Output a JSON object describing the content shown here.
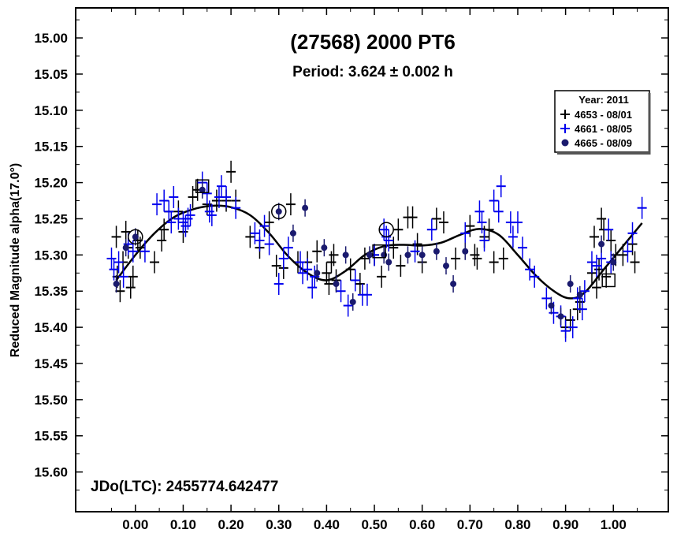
{
  "chart_data": {
    "type": "scatter",
    "title": "(27568) 2000 PT6",
    "subtitle": "Period: 3.624 ± 0.002 h",
    "ylabel": "Reduced Magnitude alpha(17.0°)",
    "xlabel": "",
    "epoch_label": "JDo(LTC): 2455774.642477",
    "xlim": [
      -0.125,
      1.115
    ],
    "ylim": [
      15.6549,
      14.9585
    ],
    "y_inverted": true,
    "x_ticks": [
      0.0,
      0.1,
      0.2,
      0.3,
      0.4,
      0.5,
      0.6,
      0.7,
      0.8,
      0.9,
      1.0
    ],
    "x_tick_labels": [
      "0.00",
      "0.10",
      "0.20",
      "0.30",
      "0.40",
      "0.50",
      "0.60",
      "0.70",
      "0.80",
      "0.90",
      "1.00"
    ],
    "y_ticks": [
      15.0,
      15.05,
      15.1,
      15.15,
      15.2,
      15.25,
      15.3,
      15.35,
      15.4,
      15.45,
      15.5,
      15.55,
      15.6
    ],
    "y_tick_labels": [
      "15.00",
      "15.05",
      "15.10",
      "15.15",
      "15.20",
      "15.25",
      "15.30",
      "15.35",
      "15.40",
      "15.45",
      "15.50",
      "15.55",
      "15.60"
    ],
    "legend": {
      "title": "Year: 2011",
      "placement": "top-right",
      "entries": [
        "4653 - 08/01",
        "4661 - 08/05",
        "4665 - 08/09"
      ]
    },
    "colors": {
      "black": "#000000",
      "blue": "#0000ee",
      "navy": "#1a1a6e"
    },
    "series": [
      {
        "name": "4653 - 08/01",
        "marker": "cross",
        "color": "#000000",
        "points": [
          [
            -0.04,
            15.275
          ],
          [
            -0.038,
            15.33
          ],
          [
            -0.032,
            15.35
          ],
          [
            -0.026,
            15.31
          ],
          [
            -0.02,
            15.268
          ],
          [
            -0.015,
            15.29
          ],
          [
            -0.01,
            15.345
          ],
          [
            -0.005,
            15.33
          ],
          [
            0.005,
            15.28
          ],
          [
            0.01,
            15.29
          ],
          [
            0.04,
            15.31
          ],
          [
            0.055,
            15.28
          ],
          [
            0.06,
            15.265
          ],
          [
            0.07,
            15.24
          ],
          [
            0.09,
            15.24
          ],
          [
            0.1,
            15.268
          ],
          [
            0.12,
            15.22
          ],
          [
            0.13,
            15.21
          ],
          [
            0.15,
            15.23
          ],
          [
            0.17,
            15.225
          ],
          [
            0.19,
            15.225
          ],
          [
            0.2,
            15.185
          ],
          [
            0.21,
            15.225
          ],
          [
            0.24,
            15.275
          ],
          [
            0.26,
            15.29
          ],
          [
            0.28,
            15.255
          ],
          [
            0.295,
            15.315
          ],
          [
            0.31,
            15.318
          ],
          [
            0.325,
            15.23
          ],
          [
            0.34,
            15.31
          ],
          [
            0.36,
            15.31
          ],
          [
            0.38,
            15.295
          ],
          [
            0.4,
            15.325
          ],
          [
            0.405,
            15.34
          ],
          [
            0.41,
            15.31
          ],
          [
            0.415,
            15.3
          ],
          [
            0.42,
            15.335
          ],
          [
            0.45,
            15.32
          ],
          [
            0.47,
            15.34
          ],
          [
            0.48,
            15.305
          ],
          [
            0.5,
            15.3
          ],
          [
            0.515,
            15.33
          ],
          [
            0.54,
            15.29
          ],
          [
            0.55,
            15.265
          ],
          [
            0.555,
            15.315
          ],
          [
            0.57,
            15.248
          ],
          [
            0.58,
            15.248
          ],
          [
            0.59,
            15.285
          ],
          [
            0.6,
            15.31
          ],
          [
            0.63,
            15.25
          ],
          [
            0.645,
            15.255
          ],
          [
            0.67,
            15.305
          ],
          [
            0.7,
            15.26
          ],
          [
            0.71,
            15.3
          ],
          [
            0.715,
            15.305
          ],
          [
            0.73,
            15.275
          ],
          [
            0.74,
            15.265
          ],
          [
            0.75,
            15.31
          ],
          [
            0.77,
            15.305
          ],
          [
            0.9,
            15.4
          ],
          [
            0.91,
            15.39
          ],
          [
            0.925,
            15.375
          ],
          [
            0.93,
            15.365
          ],
          [
            0.955,
            15.325
          ],
          [
            0.96,
            15.275
          ],
          [
            0.965,
            15.345
          ],
          [
            0.97,
            15.32
          ],
          [
            0.975,
            15.25
          ],
          [
            0.98,
            15.265
          ],
          [
            0.985,
            15.33
          ],
          [
            0.995,
            15.28
          ],
          [
            1.005,
            15.3
          ],
          [
            1.02,
            15.3
          ],
          [
            1.04,
            15.285
          ],
          [
            1.045,
            15.31
          ]
        ]
      },
      {
        "name": "4661 - 08/05",
        "marker": "cross",
        "color": "#0000ee",
        "points": [
          [
            -0.05,
            15.305
          ],
          [
            -0.045,
            15.32
          ],
          [
            -0.035,
            15.31
          ],
          [
            -0.025,
            15.33
          ],
          [
            -0.015,
            15.285
          ],
          [
            -0.005,
            15.295
          ],
          [
            0.02,
            15.295
          ],
          [
            0.045,
            15.23
          ],
          [
            0.06,
            15.225
          ],
          [
            0.07,
            15.24
          ],
          [
            0.075,
            15.255
          ],
          [
            0.08,
            15.22
          ],
          [
            0.09,
            15.25
          ],
          [
            0.1,
            15.255
          ],
          [
            0.105,
            15.26
          ],
          [
            0.11,
            15.25
          ],
          [
            0.115,
            15.245
          ],
          [
            0.14,
            15.2
          ],
          [
            0.15,
            15.215
          ],
          [
            0.155,
            15.24
          ],
          [
            0.16,
            15.245
          ],
          [
            0.175,
            15.22
          ],
          [
            0.18,
            15.205
          ],
          [
            0.19,
            15.22
          ],
          [
            0.21,
            15.235
          ],
          [
            0.25,
            15.27
          ],
          [
            0.26,
            15.28
          ],
          [
            0.27,
            15.26
          ],
          [
            0.28,
            15.285
          ],
          [
            0.3,
            15.34
          ],
          [
            0.31,
            15.305
          ],
          [
            0.32,
            15.29
          ],
          [
            0.345,
            15.31
          ],
          [
            0.35,
            15.325
          ],
          [
            0.36,
            15.32
          ],
          [
            0.37,
            15.345
          ],
          [
            0.375,
            15.33
          ],
          [
            0.43,
            15.35
          ],
          [
            0.445,
            15.37
          ],
          [
            0.46,
            15.335
          ],
          [
            0.475,
            15.355
          ],
          [
            0.485,
            15.355
          ],
          [
            0.5,
            15.3
          ],
          [
            0.52,
            15.265
          ],
          [
            0.525,
            15.275
          ],
          [
            0.53,
            15.28
          ],
          [
            0.585,
            15.295
          ],
          [
            0.62,
            15.265
          ],
          [
            0.69,
            15.27
          ],
          [
            0.72,
            15.24
          ],
          [
            0.725,
            15.255
          ],
          [
            0.73,
            15.28
          ],
          [
            0.75,
            15.225
          ],
          [
            0.76,
            15.24
          ],
          [
            0.765,
            15.205
          ],
          [
            0.785,
            15.255
          ],
          [
            0.79,
            15.275
          ],
          [
            0.8,
            15.255
          ],
          [
            0.81,
            15.29
          ],
          [
            0.825,
            15.32
          ],
          [
            0.835,
            15.33
          ],
          [
            0.86,
            15.36
          ],
          [
            0.875,
            15.38
          ],
          [
            0.89,
            15.385
          ],
          [
            0.9,
            15.405
          ],
          [
            0.915,
            15.4
          ],
          [
            0.925,
            15.36
          ],
          [
            0.935,
            15.375
          ],
          [
            0.94,
            15.35
          ],
          [
            0.955,
            15.31
          ],
          [
            0.965,
            15.315
          ],
          [
            0.975,
            15.305
          ],
          [
            0.99,
            15.265
          ],
          [
            0.995,
            15.31
          ],
          [
            1.03,
            15.295
          ],
          [
            1.04,
            15.27
          ],
          [
            1.06,
            15.235
          ]
        ]
      },
      {
        "name": "4665 - 08/09",
        "marker": "dot",
        "color": "#1a1a6e",
        "points": [
          [
            -0.04,
            15.34
          ],
          [
            -0.02,
            15.29
          ],
          [
            0.0,
            15.275
          ],
          [
            0.14,
            15.21
          ],
          [
            0.3,
            15.24
          ],
          [
            0.33,
            15.27
          ],
          [
            0.355,
            15.235
          ],
          [
            0.38,
            15.325
          ],
          [
            0.395,
            15.29
          ],
          [
            0.42,
            15.34
          ],
          [
            0.44,
            15.3
          ],
          [
            0.455,
            15.365
          ],
          [
            0.49,
            15.3
          ],
          [
            0.52,
            15.3
          ],
          [
            0.53,
            15.31
          ],
          [
            0.57,
            15.3
          ],
          [
            0.6,
            15.3
          ],
          [
            0.63,
            15.295
          ],
          [
            0.65,
            15.315
          ],
          [
            0.665,
            15.34
          ],
          [
            0.69,
            15.295
          ],
          [
            0.87,
            15.37
          ],
          [
            0.89,
            15.385
          ],
          [
            0.91,
            15.34
          ],
          [
            0.93,
            15.355
          ],
          [
            0.975,
            15.285
          ],
          [
            1.0,
            15.31
          ]
        ]
      }
    ],
    "special_markers": [
      {
        "shape": "circle",
        "x": 0.0,
        "y": 15.275
      },
      {
        "shape": "circle",
        "x": 0.3,
        "y": 15.24
      },
      {
        "shape": "circle",
        "x": 0.525,
        "y": 15.265
      },
      {
        "shape": "square",
        "x": 0.14,
        "y": 15.205
      },
      {
        "shape": "square",
        "x": 0.51,
        "y": 15.295
      },
      {
        "shape": "square",
        "x": 0.99,
        "y": 15.335
      }
    ],
    "fit_curve": {
      "name": "Fourier fit",
      "points": [
        [
          -0.04,
          15.335
        ],
        [
          0.0,
          15.3
        ],
        [
          0.04,
          15.27
        ],
        [
          0.08,
          15.248
        ],
        [
          0.12,
          15.237
        ],
        [
          0.16,
          15.232
        ],
        [
          0.2,
          15.234
        ],
        [
          0.24,
          15.245
        ],
        [
          0.28,
          15.27
        ],
        [
          0.32,
          15.302
        ],
        [
          0.36,
          15.325
        ],
        [
          0.4,
          15.335
        ],
        [
          0.44,
          15.322
        ],
        [
          0.48,
          15.3
        ],
        [
          0.52,
          15.288
        ],
        [
          0.56,
          15.286
        ],
        [
          0.6,
          15.287
        ],
        [
          0.64,
          15.283
        ],
        [
          0.68,
          15.272
        ],
        [
          0.72,
          15.264
        ],
        [
          0.76,
          15.272
        ],
        [
          0.8,
          15.3
        ],
        [
          0.84,
          15.33
        ],
        [
          0.88,
          15.352
        ],
        [
          0.91,
          15.36
        ],
        [
          0.94,
          15.352
        ],
        [
          0.98,
          15.32
        ],
        [
          1.02,
          15.288
        ],
        [
          1.06,
          15.256
        ]
      ]
    }
  }
}
